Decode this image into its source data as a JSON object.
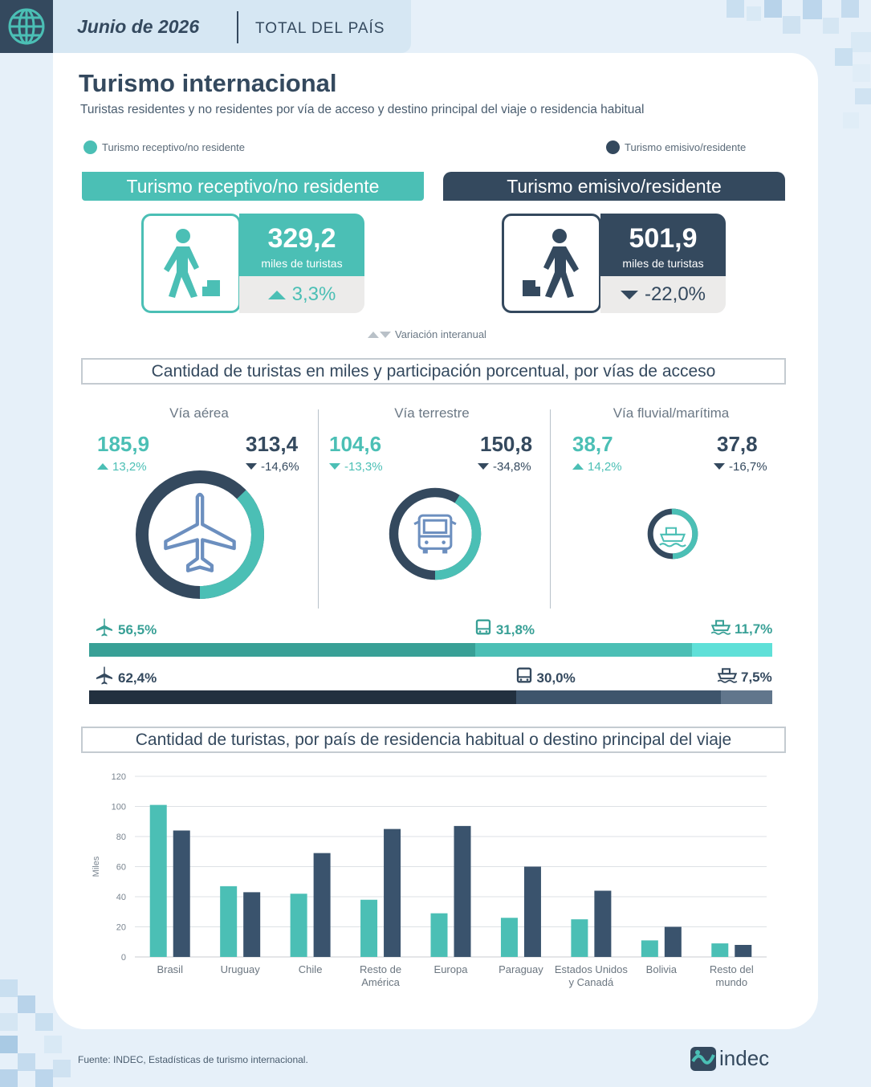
{
  "header": {
    "date": "Junio de 2026",
    "scope": "TOTAL DEL PAÍS"
  },
  "title": "Turismo internacional",
  "subtitle": "Turistas residentes y no residentes por vía de acceso y destino principal del viaje o residencia habitual",
  "legend": {
    "receptive": "Turismo receptivo/no residente",
    "emissive": "Turismo emisivo/residente"
  },
  "colors": {
    "teal": "#4bbfb5",
    "navy": "#34495e",
    "teal_dark": "#38a096",
    "teal_light": "#5fe0d8",
    "navy_dark": "#22303f",
    "navy_mid": "#3e556c",
    "navy_light": "#61768c"
  },
  "kpis": {
    "receptive": {
      "banner": "Turismo receptivo/no residente",
      "value": "329,2",
      "unit": "miles de turistas",
      "variation": "3,3%",
      "direction": "up"
    },
    "emissive": {
      "banner": "Turismo emisivo/residente",
      "value": "501,9",
      "unit": "miles de turistas",
      "variation": "-22,0%",
      "direction": "down"
    },
    "variation_note": "Variación interanual"
  },
  "access_section_title": "Cantidad de turistas en miles y participación porcentual, por vías de acceso",
  "access": [
    {
      "name": "Vía aérea",
      "icon": "airplane-icon",
      "receptive_value": "185,9",
      "receptive_var": "13,2%",
      "receptive_dir": "up",
      "emissive_value": "313,4",
      "emissive_var": "-14,6%",
      "emissive_dir": "down"
    },
    {
      "name": "Vía terrestre",
      "icon": "bus-icon",
      "receptive_value": "104,6",
      "receptive_var": "-13,3%",
      "receptive_dir": "down",
      "emissive_value": "150,8",
      "emissive_var": "-34,8%",
      "emissive_dir": "down"
    },
    {
      "name": "Vía fluvial/marítima",
      "icon": "ship-icon",
      "receptive_value": "38,7",
      "receptive_var": "14,2%",
      "receptive_dir": "up",
      "emissive_value": "37,8",
      "emissive_var": "-16,7%",
      "emissive_dir": "down"
    }
  ],
  "shares": {
    "receptive": [
      {
        "icon": "airplane-icon",
        "label": "56,5%",
        "value": 56.5
      },
      {
        "icon": "bus-icon",
        "label": "31,8%",
        "value": 31.8
      },
      {
        "icon": "ship-icon",
        "label": "11,7%",
        "value": 11.7
      }
    ],
    "emissive": [
      {
        "icon": "airplane-icon",
        "label": "62,4%",
        "value": 62.4
      },
      {
        "icon": "bus-icon",
        "label": "30,0%",
        "value": 30.0
      },
      {
        "icon": "ship-icon",
        "label": "7,5%",
        "value": 7.5
      }
    ]
  },
  "country_section_title": "Cantidad de turistas, por país de residencia habitual o destino principal del viaje",
  "chart_data": {
    "type": "bar",
    "ylabel": "Miles",
    "ylim": [
      0,
      120
    ],
    "yticks": [
      "0",
      "20",
      "40",
      "60",
      "80",
      "100",
      "120"
    ],
    "categories": [
      [
        "Brasil"
      ],
      [
        "Uruguay"
      ],
      [
        "Chile"
      ],
      [
        "Resto de",
        "América"
      ],
      [
        "Europa"
      ],
      [
        "Paraguay"
      ],
      [
        "Estados Unidos",
        "y Canadá"
      ],
      [
        "Bolivia"
      ],
      [
        "Resto del",
        "mundo"
      ]
    ],
    "series": [
      {
        "color": "#4bbfb5",
        "values": [
          101,
          47,
          42,
          38,
          29,
          26,
          25,
          11,
          9
        ]
      },
      {
        "color": "#3a536d",
        "values": [
          84,
          43,
          69,
          85,
          87,
          60,
          44,
          20,
          8
        ]
      }
    ],
    "grid": true
  },
  "footer": "Fuente: INDEC, Estadísticas de turismo internacional.",
  "logo_text": "indec"
}
